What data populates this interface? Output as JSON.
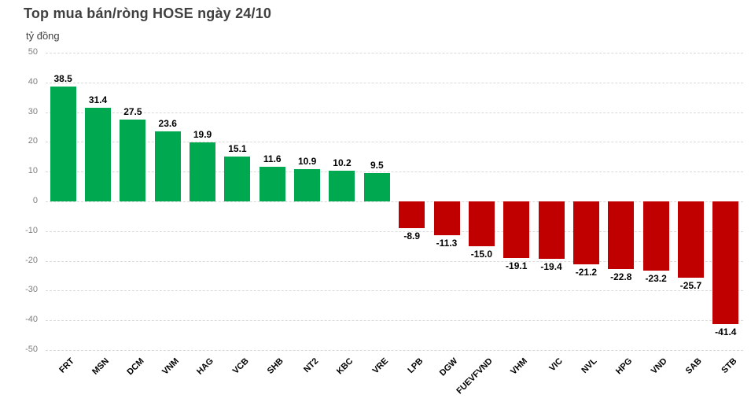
{
  "header": {
    "title": "Top mua bán/ròng HOSE ngày 24/10",
    "unit_label": "tỷ đồng"
  },
  "chart_data": {
    "type": "bar",
    "title": "Top mua bán/ròng HOSE ngày 24/10",
    "xlabel": "",
    "ylabel": "tỷ đồng",
    "categories": [
      "FRT",
      "MSN",
      "DCM",
      "VNM",
      "HAG",
      "VCB",
      "SHB",
      "NT2",
      "KBC",
      "VRE",
      "LPB",
      "DGW",
      "FUEVFVND",
      "VHM",
      "VIC",
      "NVL",
      "HPG",
      "VND",
      "SAB",
      "STB"
    ],
    "values": [
      38.5,
      31.4,
      27.5,
      23.6,
      19.9,
      15.1,
      11.6,
      10.9,
      10.2,
      9.5,
      -8.9,
      -11.3,
      -15.0,
      -19.1,
      -19.4,
      -21.2,
      -22.8,
      -23.2,
      -25.7,
      -41.4
    ],
    "value_labels": [
      "38.5",
      "31.4",
      "27.5",
      "23.6",
      "19.9",
      "15.1",
      "11.6",
      "10.9",
      "10.2",
      "9.5",
      "-8.9",
      "-11.3",
      "-15.0",
      "-19.1",
      "-19.4",
      "-21.2",
      "-22.8",
      "-23.2",
      "-25.7",
      "-41.4"
    ],
    "ylim": [
      -50,
      50
    ],
    "yticks": [
      50,
      40,
      30,
      20,
      10,
      0,
      -10,
      -20,
      -30,
      -40,
      -50
    ],
    "grid": true,
    "legend": "none",
    "colors": {
      "positive": "#00a84f",
      "negative": "#c00000",
      "grid": "#d9d9d9",
      "axis_text": "#7f7f7f",
      "title_text": "#404040",
      "data_label": "#000000"
    }
  }
}
